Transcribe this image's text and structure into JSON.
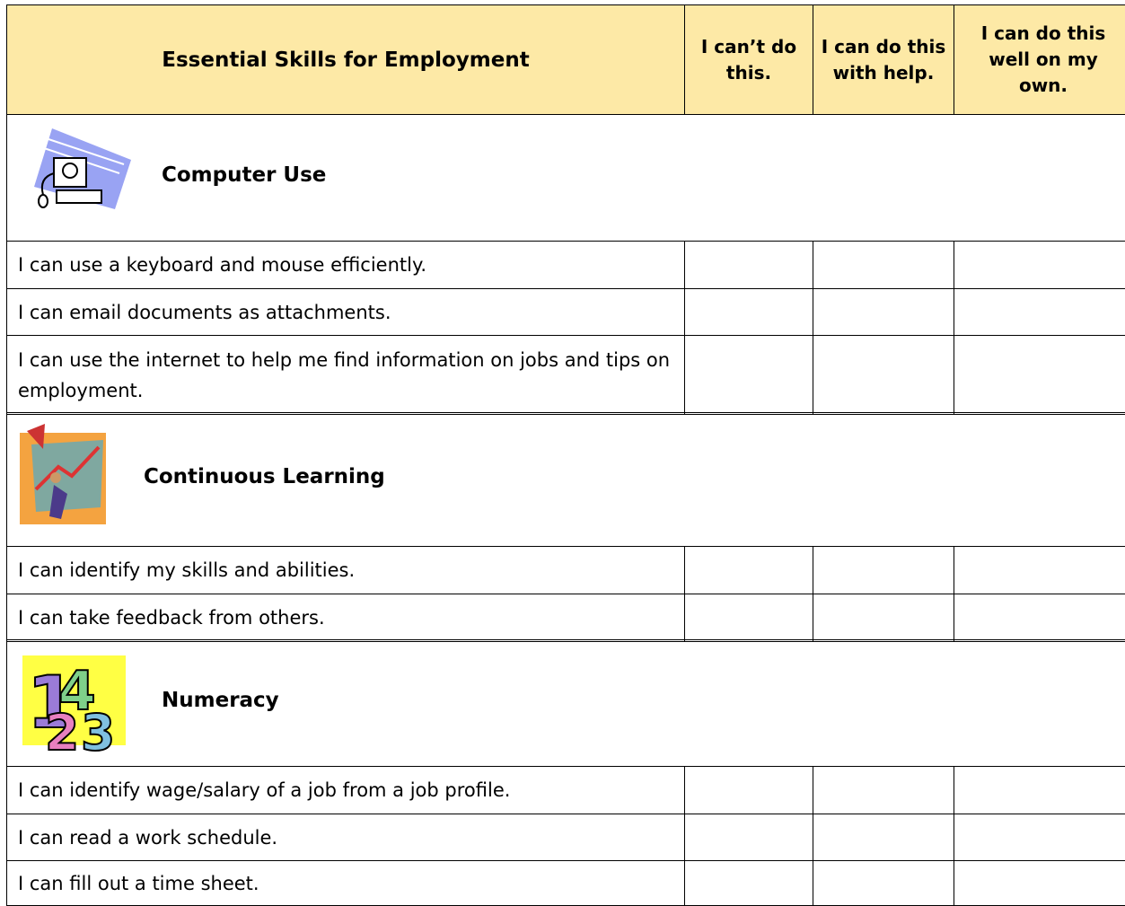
{
  "header": {
    "title": "Essential Skills for Employment",
    "columns": [
      "I can’t do this.",
      "I can do this with help.",
      "I can do this well on my own."
    ]
  },
  "sections": [
    {
      "title": "Computer Use",
      "items": [
        "I can use a keyboard and mouse efficiently.",
        "I can email documents as attachments.",
        "I can use the internet to help me find information on jobs and tips on employment."
      ]
    },
    {
      "title": "Continuous Learning",
      "items": [
        "I can identify my skills and abilities.",
        "I can take feedback from others."
      ]
    },
    {
      "title": "Numeracy",
      "items": [
        "I can identify wage/salary of a job from a job profile.",
        "I can read a work schedule.",
        "I can fill out a time sheet."
      ]
    }
  ]
}
